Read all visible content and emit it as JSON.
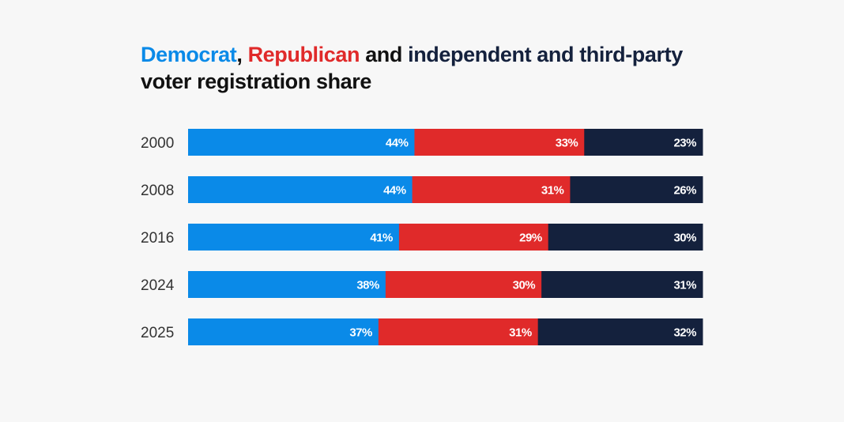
{
  "title": {
    "part1": "Democrat",
    "sep1": ", ",
    "part2": "Republican",
    "sep2": " and ",
    "part3": "independent and third-party",
    "line2": "voter registration share"
  },
  "colors": {
    "democrat": "#0a8ae8",
    "republican": "#e02a2a",
    "independent": "#14213d"
  },
  "chart_data": {
    "type": "bar",
    "stacked": true,
    "orientation": "horizontal",
    "title": "Democrat, Republican and independent and third-party voter registration share",
    "categories": [
      "2000",
      "2008",
      "2016",
      "2024",
      "2025"
    ],
    "series": [
      {
        "name": "Democrat",
        "values": [
          44,
          44,
          41,
          38,
          37
        ],
        "labels": [
          "44%",
          "44%",
          "41%",
          "38%",
          "37%"
        ]
      },
      {
        "name": "Republican",
        "values": [
          33,
          31,
          29,
          30,
          31
        ],
        "labels": [
          "33%",
          "31%",
          "29%",
          "30%",
          "31%"
        ]
      },
      {
        "name": "independent and third-party",
        "values": [
          23,
          26,
          30,
          31,
          32
        ],
        "labels": [
          "23%",
          "26%",
          "30%",
          "31%",
          "32%"
        ]
      }
    ],
    "xlim": [
      0,
      100
    ],
    "grid": false,
    "legend": "title"
  }
}
